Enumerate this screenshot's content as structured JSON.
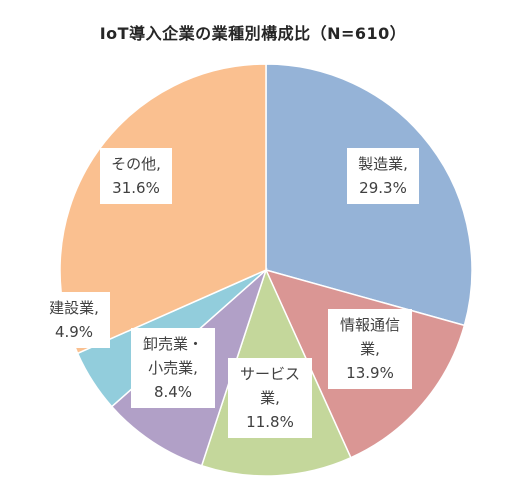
{
  "chart_data": {
    "type": "pie",
    "title": "IoT導入企業の業種別構成比（N=610）",
    "categories": [
      "製造業",
      "情報通信業",
      "サービス業",
      "卸売業・小売業",
      "建設業",
      "その他"
    ],
    "values": [
      29.3,
      13.9,
      11.8,
      8.4,
      4.9,
      31.6
    ],
    "unit": "%",
    "colors": [
      "#95B3D7",
      "#DA9694",
      "#C4D79B",
      "#B1A0C7",
      "#92CDDC",
      "#FAC090"
    ],
    "data_labels": [
      {
        "lines": [
          "製造業,",
          "29.3%"
        ]
      },
      {
        "lines": [
          "情報通信",
          "業,",
          "13.9%"
        ]
      },
      {
        "lines": [
          "サービス",
          "業,",
          "11.8%"
        ]
      },
      {
        "lines": [
          "卸売業・",
          "小売業,",
          "8.4%"
        ]
      },
      {
        "lines": [
          "建設業,",
          "4.9%"
        ]
      },
      {
        "lines": [
          "その他,",
          "31.6%"
        ]
      }
    ],
    "legend": "none",
    "start_angle": "12 o'clock",
    "direction": "clockwise"
  }
}
